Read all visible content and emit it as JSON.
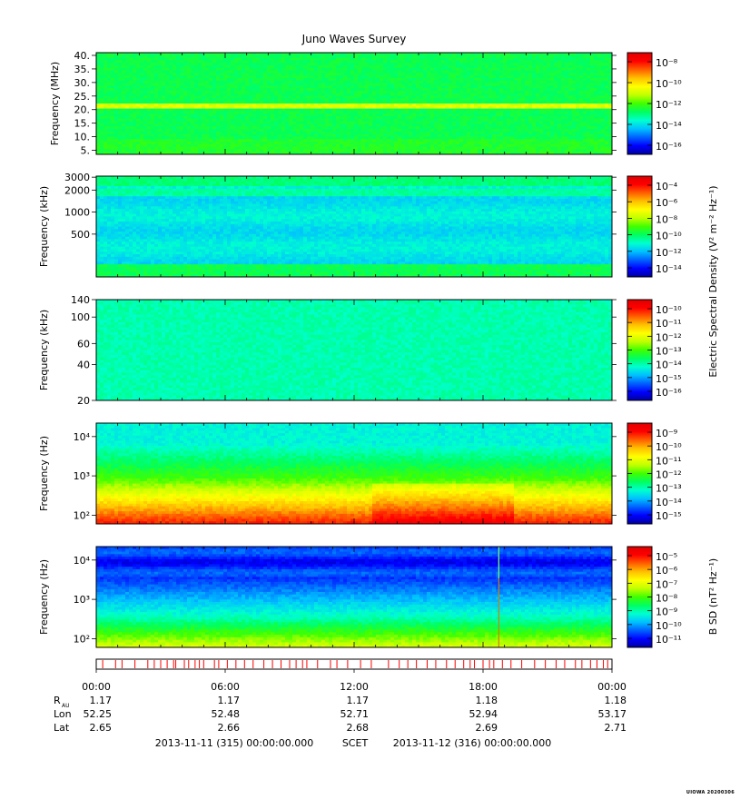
{
  "title": "Juno Waves Survey",
  "footnote": "UIOWA 20200306",
  "colorbar_labels": {
    "electric": "Electric Spectral Density (V² m⁻² Hz⁻¹)",
    "magnetic": "B SD (nT² Hz⁻¹)"
  },
  "colors": {
    "colormap": [
      "#0000a0",
      "#0000ff",
      "#0060ff",
      "#00c0ff",
      "#00ffd0",
      "#00ff60",
      "#40ff00",
      "#c0ff00",
      "#ffff00",
      "#ffc000",
      "#ff6000",
      "#ff0000",
      "#e00000"
    ],
    "event_marker": "#ff0000"
  },
  "chart_data": [
    {
      "type": "heatmap",
      "ylabel": "Frequency (MHz)",
      "yscale": "linear",
      "ylim": [
        3.5,
        41
      ],
      "yticks": [
        5,
        10,
        15,
        20,
        25,
        30,
        35,
        40
      ],
      "ytick_labels": [
        "5.",
        "10.",
        "15.",
        "20.",
        "25.",
        "30.",
        "35.",
        "40."
      ],
      "colorbar": {
        "ticks": [
          "10⁻⁸",
          "10⁻¹⁰",
          "10⁻¹²",
          "10⁻¹⁴",
          "10⁻¹⁶"
        ]
      },
      "levels": {
        "background": 0.43,
        "line_20MHz": 0.62
      }
    },
    {
      "type": "heatmap",
      "ylabel": "Frequency (kHz)",
      "yscale": "log",
      "ylim": [
        130,
        3100
      ],
      "yticks": [
        500,
        1000,
        2000,
        3000
      ],
      "ytick_labels": [
        "500",
        "1000",
        "2000",
        "3000"
      ],
      "colorbar": {
        "ticks": [
          "10⁻⁴",
          "10⁻⁶",
          "10⁻⁸",
          "10⁻¹⁰",
          "10⁻¹²",
          "10⁻¹⁴"
        ]
      },
      "levels": {
        "background": 0.3,
        "band_top": 0.4,
        "band_bottom": 0.42
      }
    },
    {
      "type": "heatmap",
      "ylabel": "Frequency (kHz)",
      "yscale": "log",
      "ylim": [
        20,
        140
      ],
      "yticks": [
        20,
        40,
        60,
        100,
        140
      ],
      "ytick_labels": [
        "20",
        "40",
        "60",
        "100",
        "140"
      ],
      "colorbar": {
        "ticks": [
          "10⁻¹⁰",
          "10⁻¹¹",
          "10⁻¹²",
          "10⁻¹³",
          "10⁻¹⁴",
          "10⁻¹⁵",
          "10⁻¹⁶"
        ]
      },
      "levels": {
        "background": 0.36
      }
    },
    {
      "type": "heatmap",
      "ylabel": "Frequency (Hz)",
      "yscale": "log",
      "ylim": [
        60,
        22000
      ],
      "yticks": [
        100,
        1000,
        10000
      ],
      "ytick_labels": [
        "10²",
        "10³",
        "10⁴"
      ],
      "colorbar": {
        "ticks": [
          "10⁻⁹",
          "10⁻¹⁰",
          "10⁻¹¹",
          "10⁻¹²",
          "10⁻¹³",
          "10⁻¹⁴",
          "10⁻¹⁵"
        ]
      },
      "levels": {
        "top": 0.32,
        "middle": 0.5,
        "bottom": 0.9
      }
    },
    {
      "type": "heatmap",
      "ylabel": "Frequency (Hz)",
      "yscale": "log",
      "ylim": [
        60,
        22000
      ],
      "yticks": [
        100,
        1000,
        10000
      ],
      "ytick_labels": [
        "10²",
        "10³",
        "10⁴"
      ],
      "colorbar": {
        "ticks": [
          "10⁻⁵",
          "10⁻⁶",
          "10⁻⁷",
          "10⁻⁸",
          "10⁻⁹",
          "10⁻¹⁰",
          "10⁻¹¹"
        ]
      },
      "levels": {
        "top": 0.12,
        "middle": 0.35,
        "bottom": 0.62
      },
      "spike_time": "18:44"
    }
  ],
  "events": {
    "times_hours": [
      0.3,
      0.9,
      1.2,
      1.8,
      2.4,
      2.7,
      3.0,
      3.3,
      3.6,
      3.7,
      4.1,
      4.3,
      4.6,
      4.8,
      5.0,
      5.5,
      5.7,
      6.1,
      6.5,
      6.9,
      7.3,
      7.8,
      8.2,
      8.6,
      9.0,
      9.3,
      9.6,
      9.8,
      10.3,
      10.9,
      11.2,
      11.7,
      12.3,
      12.8,
      13.6,
      14.1,
      14.5,
      14.9,
      15.4,
      15.8,
      16.3,
      16.7,
      17.1,
      17.4,
      17.6,
      18.0,
      18.3,
      18.5,
      18.9,
      19.3,
      19.8,
      20.4,
      20.9,
      21.4,
      21.8,
      22.3,
      22.6,
      23.0,
      23.3,
      23.6,
      23.8
    ]
  },
  "time_axis": {
    "labels": [
      "00:00",
      "06:00",
      "12:00",
      "18:00",
      "00:00"
    ]
  },
  "ephemeris": {
    "rows": [
      {
        "label": "R",
        "sub": "AU",
        "values": [
          "1.17",
          "1.17",
          "1.17",
          "1.18",
          "1.18"
        ]
      },
      {
        "label": "Lon",
        "sub": "",
        "values": [
          "52.25",
          "52.48",
          "52.71",
          "52.94",
          "53.17"
        ]
      },
      {
        "label": "Lat",
        "sub": "",
        "values": [
          "2.65",
          "2.66",
          "2.68",
          "2.69",
          "2.71"
        ]
      }
    ]
  },
  "range": {
    "start": "2013-11-11 (315) 00:00:00.000",
    "scet": "SCET",
    "end": "2013-11-12 (316) 00:00:00.000"
  }
}
